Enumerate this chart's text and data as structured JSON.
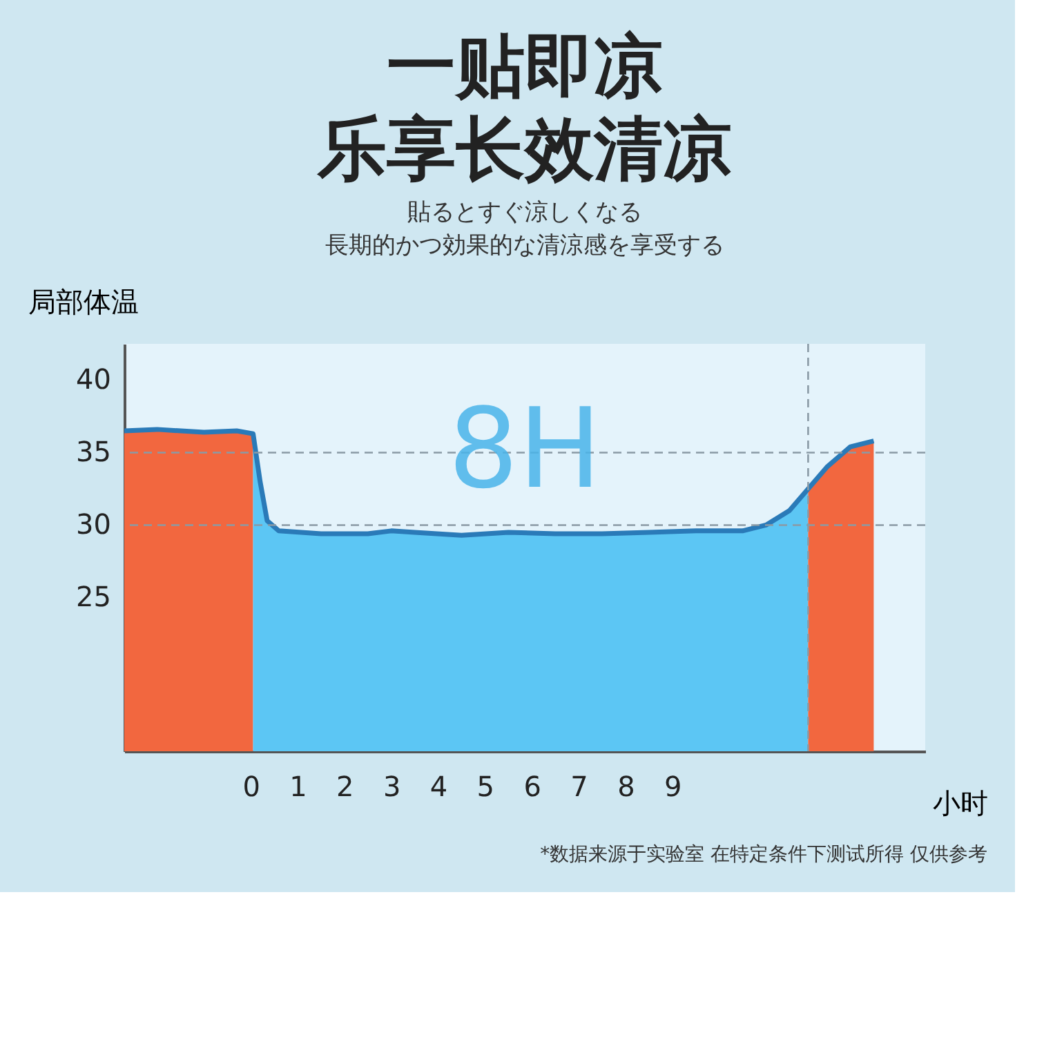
{
  "chart_data": {
    "type": "area",
    "title": "一贴即凉",
    "subtitle": "乐享长效清凉",
    "xlabel": "小时",
    "ylabel": "局部体温",
    "xlim": [
      -2.7,
      14.4
    ],
    "ylim": [
      14.4,
      42.5
    ],
    "xticks": [
      0,
      1,
      2,
      3,
      4,
      5,
      6,
      7,
      8,
      9
    ],
    "yticks": [
      25,
      30,
      35,
      40
    ],
    "grid": false,
    "series": [
      {
        "color": "#f2673f",
        "x": [
          -2.7,
          -2.0,
          -1.0,
          -0.3,
          0.05
        ],
        "values": [
          36.5,
          36.6,
          36.4,
          36.5,
          36.3
        ]
      },
      {
        "color": "#5cc6f4",
        "x": [
          0.05,
          0.2,
          0.35,
          0.6,
          1.5,
          2.5,
          3.0,
          3.5,
          4.5,
          5.5,
          6.5,
          7.5,
          8.5,
          9.5,
          10.5,
          11.0,
          11.5,
          11.9
        ],
        "values": [
          36.3,
          33,
          30.3,
          29.6,
          29.4,
          29.4,
          29.6,
          29.5,
          29.3,
          29.5,
          29.4,
          29.4,
          29.5,
          29.6,
          29.6,
          30.0,
          31.0,
          32.5
        ]
      },
      {
        "color": "#f2673f",
        "x": [
          11.9,
          12.3,
          12.8,
          13.3
        ],
        "values": [
          32.5,
          34.0,
          35.4,
          35.8
        ]
      },
      {
        "type": "line",
        "color": "#2a7ab8",
        "x": [
          -2.7,
          -2.0,
          -1.0,
          -0.3,
          0.05,
          0.2,
          0.35,
          0.6,
          1.5,
          2.5,
          3.0,
          3.5,
          4.5,
          5.5,
          6.5,
          7.5,
          8.5,
          9.5,
          10.5,
          11.0,
          11.5,
          11.9,
          12.3,
          12.8,
          13.3
        ],
        "values": [
          36.5,
          36.6,
          36.4,
          36.5,
          36.3,
          33,
          30.3,
          29.6,
          29.4,
          29.4,
          29.6,
          29.5,
          29.3,
          29.5,
          29.4,
          29.4,
          29.5,
          29.6,
          29.6,
          30.0,
          31.0,
          32.5,
          34.0,
          35.4,
          35.8
        ]
      }
    ],
    "ref_lines": [
      {
        "axis": "y",
        "value": 35,
        "color": "#8a9aa5",
        "line_style": "dashed"
      },
      {
        "axis": "y",
        "value": 30,
        "color": "#8a9aa5",
        "line_style": "dashed"
      },
      {
        "axis": "x",
        "value": 11.9,
        "color": "#8a9aa5",
        "line_style": "dashed"
      }
    ],
    "annotations": [
      "貼るとすぐ涼しくなる",
      "長期的かつ効果的な清涼感を享受する",
      "8H",
      "*数据来源于实验室 在特定条件下测试所得 仅供参考"
    ]
  }
}
